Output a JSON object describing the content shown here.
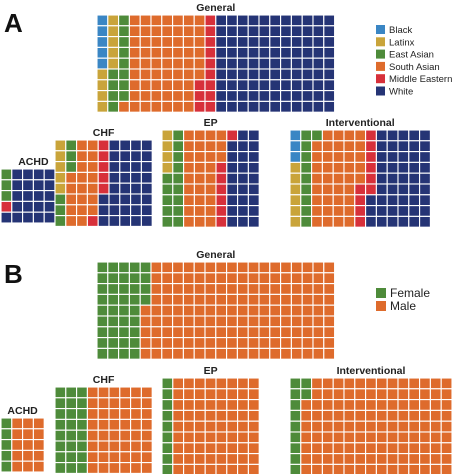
{
  "chart_data": [
    {
      "type": "waffle",
      "panel_label": "A",
      "legend": [
        {
          "name": "Black",
          "color": "#3a86c4"
        },
        {
          "name": "Latinx",
          "color": "#c9a43a"
        },
        {
          "name": "East Asian",
          "color": "#4e8b3a"
        },
        {
          "name": "South Asian",
          "color": "#de6b2c"
        },
        {
          "name": "Middle Eastern",
          "color": "#d7303a"
        },
        {
          "name": "White",
          "color": "#253475"
        }
      ],
      "legend_position": "right",
      "grid_color": "#ffffff",
      "charts": [
        {
          "title": "General",
          "cols": 22,
          "rows": 9,
          "counts": [
            5,
            9,
            12,
            61,
            12,
            99
          ]
        },
        {
          "title": "ACHD",
          "cols": 6,
          "rows": 5,
          "counts": [
            0,
            0,
            3,
            0,
            1,
            26
          ]
        },
        {
          "title": "CHF",
          "cols": 9,
          "rows": 8,
          "counts": [
            0,
            5,
            6,
            20,
            6,
            35
          ]
        },
        {
          "title": "EP",
          "cols": 9,
          "rows": 9,
          "counts": [
            0,
            4,
            14,
            30,
            7,
            26
          ]
        },
        {
          "title": "Interventional",
          "cols": 13,
          "rows": 9,
          "counts": [
            3,
            6,
            10,
            40,
            10,
            48
          ]
        }
      ]
    },
    {
      "type": "waffle",
      "panel_label": "B",
      "legend": [
        {
          "name": "Female",
          "color": "#4e8b3a"
        },
        {
          "name": "Male",
          "color": "#de6b2c"
        }
      ],
      "legend_position": "right",
      "grid_color": "#ffffff",
      "charts": [
        {
          "title": "General",
          "cols": 22,
          "rows": 9,
          "counts": [
            40,
            158
          ]
        },
        {
          "title": "ACHD",
          "cols": 4,
          "rows": 5,
          "counts": [
            5,
            15
          ]
        },
        {
          "title": "CHF",
          "cols": 9,
          "rows": 8,
          "counts": [
            24,
            48
          ]
        },
        {
          "title": "EP",
          "cols": 9,
          "rows": 9,
          "counts": [
            9,
            72
          ]
        },
        {
          "title": "Interventional",
          "cols": 15,
          "rows": 9,
          "counts": [
            11,
            124
          ]
        }
      ]
    }
  ]
}
